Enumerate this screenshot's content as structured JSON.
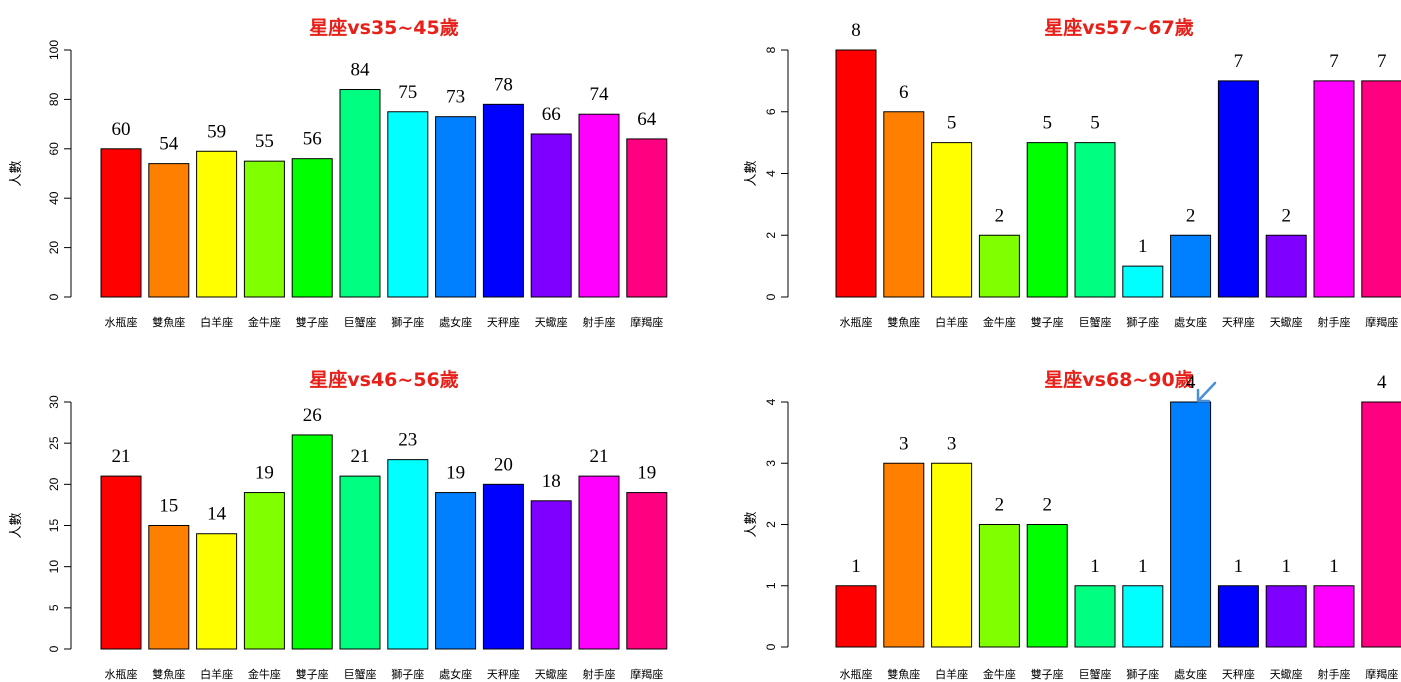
{
  "colors": [
    "#FF0000",
    "#FF8000",
    "#FFFF00",
    "#80FF00",
    "#00FF00",
    "#00FF80",
    "#00FFFF",
    "#0080FF",
    "#0000FF",
    "#8000FF",
    "#FF00FF",
    "#FF0080"
  ],
  "title_color": "#E8201A",
  "chart_data": [
    {
      "type": "bar",
      "title": "星座vs35~45歲",
      "ylabel": "人數",
      "categories": [
        "水瓶座",
        "雙魚座",
        "白羊座",
        "金牛座",
        "雙子座",
        "巨蟹座",
        "獅子座",
        "處女座",
        "天秤座",
        "天蠍座",
        "射手座",
        "摩羯座"
      ],
      "values": [
        60,
        54,
        59,
        55,
        56,
        84,
        75,
        73,
        78,
        66,
        74,
        64
      ],
      "ylim": [
        0,
        100
      ],
      "yticks": [
        0,
        20,
        40,
        60,
        80,
        100
      ]
    },
    {
      "type": "bar",
      "title": "星座vs57~67歲",
      "ylabel": "人數",
      "categories": [
        "水瓶座",
        "雙魚座",
        "白羊座",
        "金牛座",
        "雙子座",
        "巨蟹座",
        "獅子座",
        "處女座",
        "天秤座",
        "天蠍座",
        "射手座",
        "摩羯座"
      ],
      "values": [
        8,
        6,
        5,
        2,
        5,
        5,
        1,
        2,
        7,
        2,
        7,
        7
      ],
      "ylim": [
        0,
        8
      ],
      "yticks": [
        0,
        2,
        4,
        6,
        8
      ]
    },
    {
      "type": "bar",
      "title": "星座vs46~56歲",
      "ylabel": "人數",
      "categories": [
        "水瓶座",
        "雙魚座",
        "白羊座",
        "金牛座",
        "雙子座",
        "巨蟹座",
        "獅子座",
        "處女座",
        "天秤座",
        "天蠍座",
        "射手座",
        "摩羯座"
      ],
      "values": [
        21,
        15,
        14,
        19,
        26,
        21,
        23,
        19,
        20,
        18,
        21,
        19
      ],
      "ylim": [
        0,
        30
      ],
      "yticks": [
        0,
        5,
        10,
        15,
        20,
        25,
        30
      ]
    },
    {
      "type": "bar",
      "title": "星座vs68~90歲",
      "ylabel": "人數",
      "categories": [
        "水瓶座",
        "雙魚座",
        "白羊座",
        "金牛座",
        "雙子座",
        "巨蟹座",
        "獅子座",
        "處女座",
        "天秤座",
        "天蠍座",
        "射手座",
        "摩羯座"
      ],
      "values": [
        1,
        3,
        3,
        2,
        2,
        1,
        1,
        4,
        1,
        1,
        1,
        4
      ],
      "ylim": [
        0,
        4
      ],
      "yticks": [
        0,
        1,
        2,
        3,
        4
      ]
    }
  ]
}
